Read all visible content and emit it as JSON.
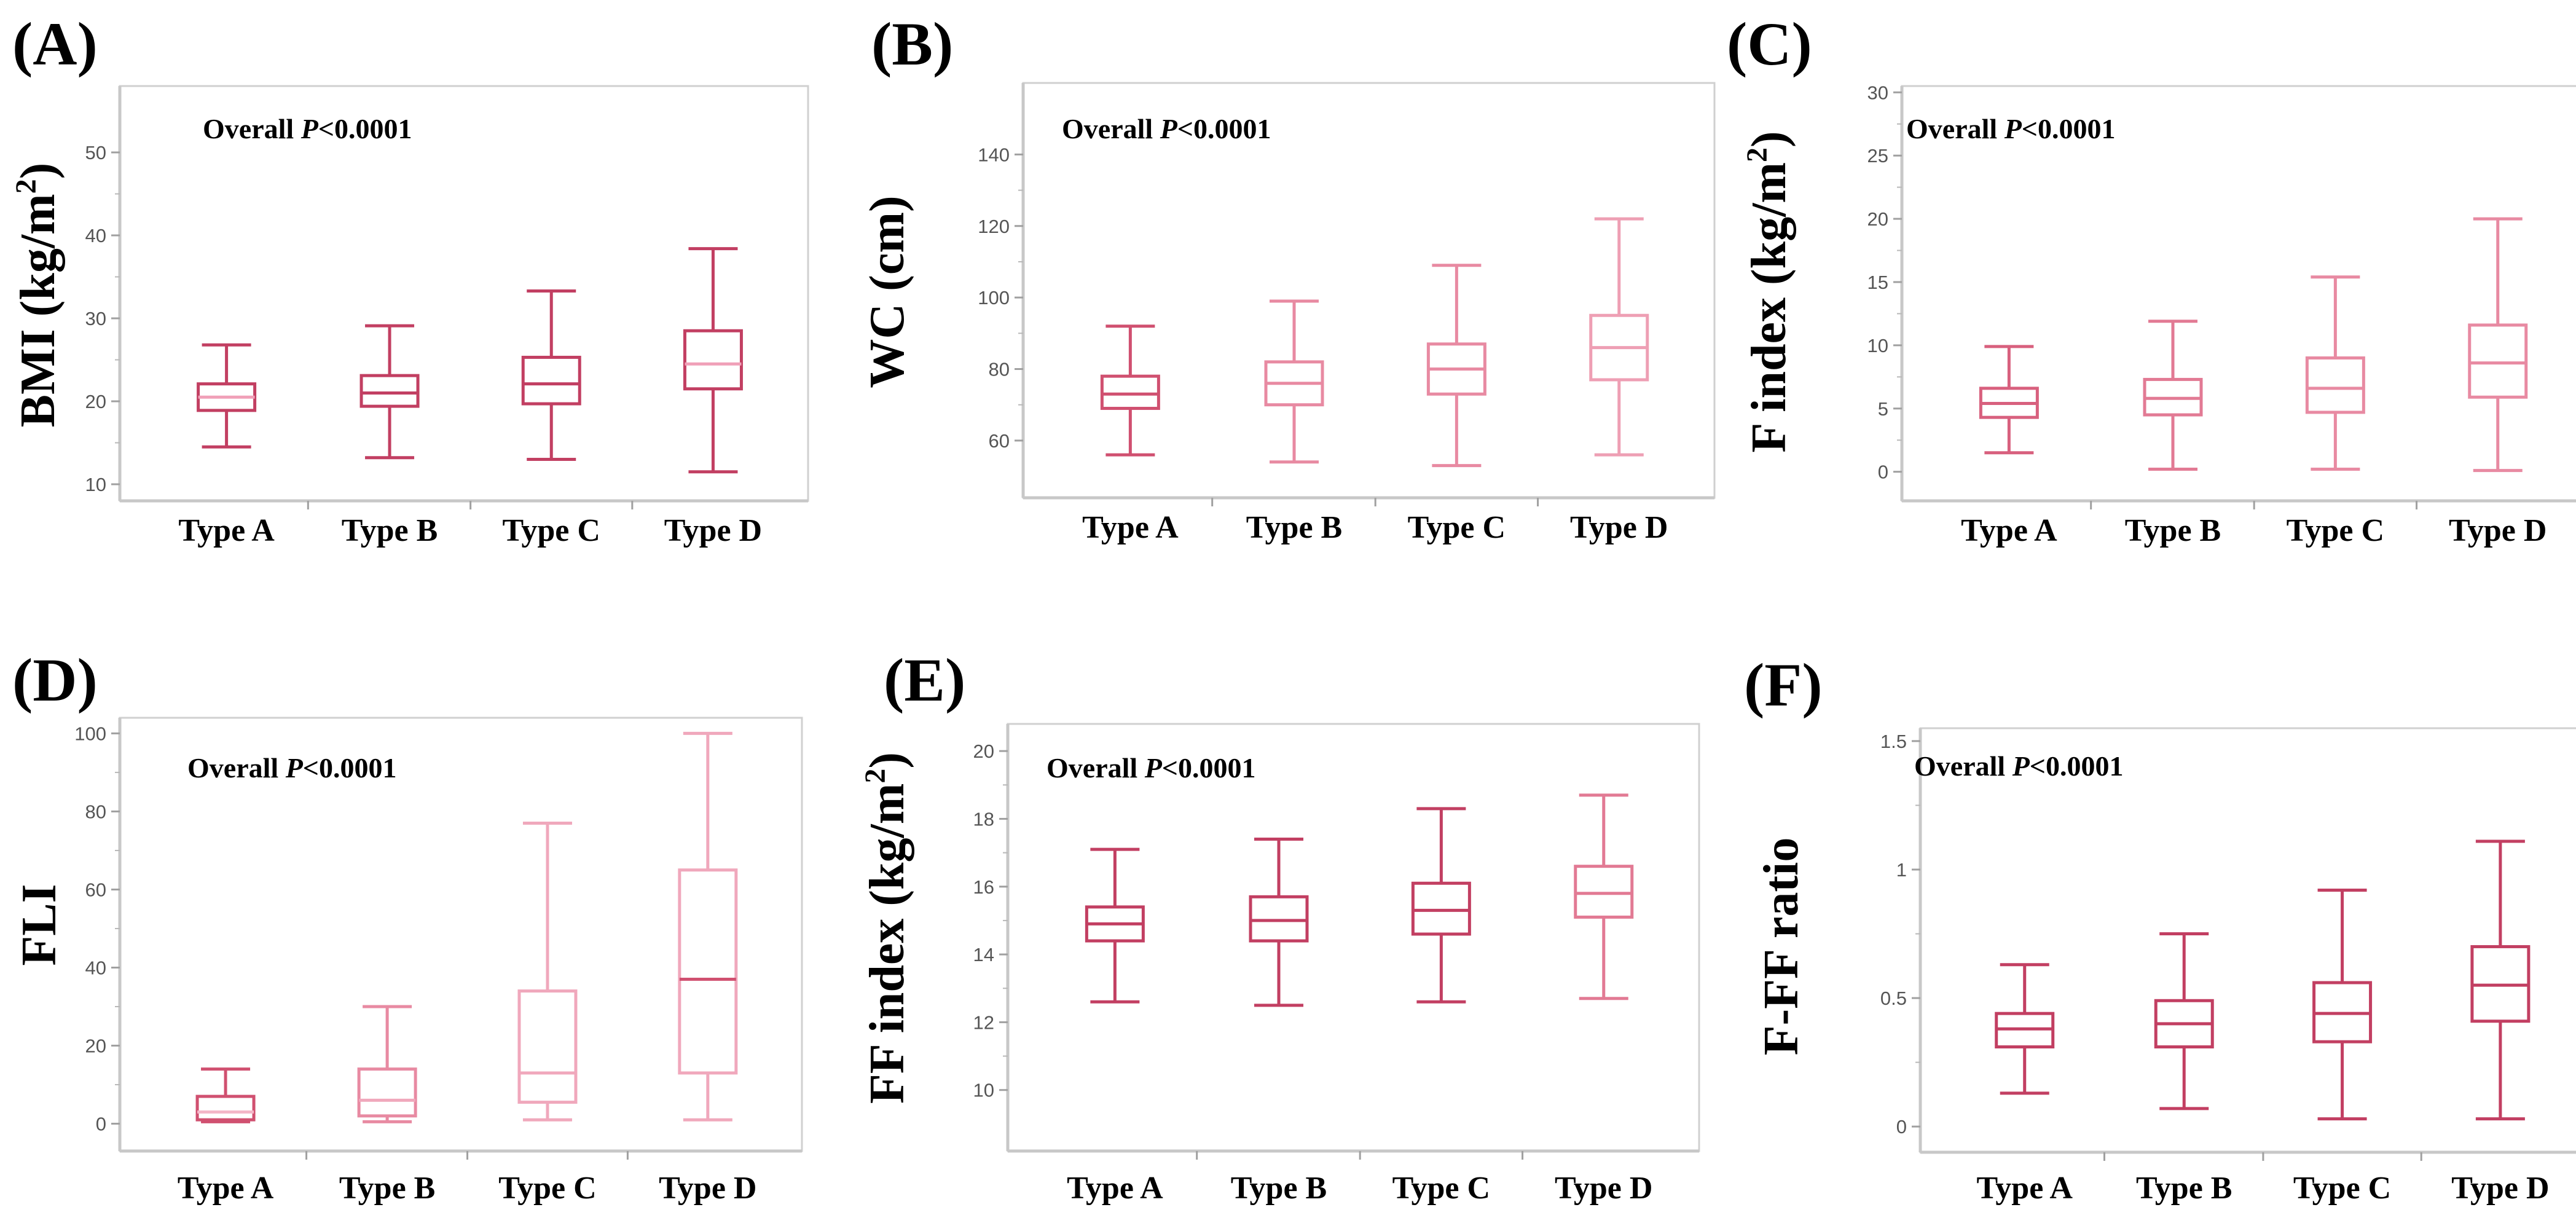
{
  "figure": {
    "background": "#ffffff",
    "axis_color": "#c8c8c8",
    "box_color": "#c0506e"
  },
  "chart_data": [
    {
      "id": "A",
      "panel_label": "(A)",
      "type": "boxplot",
      "ylabel": "BMI (kg/m",
      "ylabel_sup": "2",
      "ylabel_end": ")",
      "annotation": {
        "prefix": "Overall ",
        "italic": "P",
        "suffix": "<0.0001"
      },
      "categories": [
        "Type A",
        "Type B",
        "Type C",
        "Type D"
      ],
      "ylim": [
        8,
        58
      ],
      "yticks": [
        10,
        20,
        30,
        40,
        50
      ],
      "ytick_labels": [
        "10",
        "20",
        "30",
        "40",
        "50"
      ],
      "box_colors": [
        "#c23f62",
        "#c23f62",
        "#c23f62",
        "#c23f62"
      ],
      "median_colors": [
        "#f0a0b8",
        "#c23f62",
        "#c23f62",
        "#f0a0b8"
      ],
      "series": [
        {
          "min": 14.5,
          "q1": 18.9,
          "median": 20.5,
          "q3": 22.1,
          "max": 26.8
        },
        {
          "min": 13.2,
          "q1": 19.4,
          "median": 21.0,
          "q3": 23.1,
          "max": 29.1
        },
        {
          "min": 13.0,
          "q1": 19.7,
          "median": 22.1,
          "q3": 25.3,
          "max": 33.3
        },
        {
          "min": 11.5,
          "q1": 21.5,
          "median": 24.5,
          "q3": 28.5,
          "max": 38.4
        }
      ]
    },
    {
      "id": "B",
      "panel_label": "(B)",
      "type": "boxplot",
      "ylabel": "WC (cm)",
      "ylabel_sup": "",
      "ylabel_end": "",
      "annotation": {
        "prefix": "Overall ",
        "italic": "P",
        "suffix": "<0.0001"
      },
      "categories": [
        "Type A",
        "Type B",
        "Type C",
        "Type D"
      ],
      "ylim": [
        44,
        160
      ],
      "yticks": [
        60,
        80,
        100,
        120,
        140
      ],
      "ytick_labels": [
        "60",
        "80",
        "100",
        "120",
        "140"
      ],
      "box_colors": [
        "#d05070",
        "#e88aa2",
        "#e88aa2",
        "#ee9fb4"
      ],
      "median_colors": [
        "#d05070",
        "#e88aa2",
        "#e88aa2",
        "#ee9fb4"
      ],
      "series": [
        {
          "min": 56,
          "q1": 69,
          "median": 73,
          "q3": 78,
          "max": 92
        },
        {
          "min": 54,
          "q1": 70,
          "median": 76,
          "q3": 82,
          "max": 99
        },
        {
          "min": 53,
          "q1": 73,
          "median": 80,
          "q3": 87,
          "max": 109
        },
        {
          "min": 56,
          "q1": 77,
          "median": 86,
          "q3": 95,
          "max": 122
        }
      ]
    },
    {
      "id": "C",
      "panel_label": "(C)",
      "type": "boxplot",
      "ylabel": "F index (kg/m",
      "ylabel_sup": "2",
      "ylabel_end": ")",
      "annotation": {
        "prefix": "Overall ",
        "italic": "P",
        "suffix": "<0.0001"
      },
      "categories": [
        "Type A",
        "Type B",
        "Type C",
        "Type D"
      ],
      "ylim": [
        -2.3,
        30.5
      ],
      "yticks": [
        0,
        5,
        10,
        15,
        20,
        25,
        30
      ],
      "ytick_labels": [
        "0",
        "5",
        "10",
        "15",
        "20",
        "25",
        "30"
      ],
      "box_colors": [
        "#d8607e",
        "#e27a94",
        "#e88aa2",
        "#e88aa2"
      ],
      "median_colors": [
        "#d8607e",
        "#e27a94",
        "#e88aa2",
        "#e88aa2"
      ],
      "series": [
        {
          "min": 1.5,
          "q1": 4.3,
          "median": 5.4,
          "q3": 6.6,
          "max": 9.9
        },
        {
          "min": 0.2,
          "q1": 4.5,
          "median": 5.8,
          "q3": 7.3,
          "max": 11.9
        },
        {
          "min": 0.2,
          "q1": 4.7,
          "median": 6.6,
          "q3": 9.0,
          "max": 15.4
        },
        {
          "min": 0.1,
          "q1": 5.9,
          "median": 8.6,
          "q3": 11.6,
          "max": 20.0
        }
      ]
    },
    {
      "id": "D",
      "panel_label": "(D)",
      "type": "boxplot",
      "ylabel": "FLI",
      "ylabel_sup": "",
      "ylabel_end": "",
      "annotation": {
        "prefix": "Overall ",
        "italic": "P",
        "suffix": "<0.0001"
      },
      "categories": [
        "Type A",
        "Type B",
        "Type C",
        "Type D"
      ],
      "ylim": [
        -7,
        104
      ],
      "yticks": [
        0,
        20,
        40,
        60,
        80,
        100
      ],
      "ytick_labels": [
        "0",
        "20",
        "40",
        "60",
        "80",
        "100"
      ],
      "box_colors": [
        "#d05070",
        "#e88aa2",
        "#f0a8bc",
        "#f0a8bc"
      ],
      "median_colors": [
        "#f4b6c8",
        "#f0a8bc",
        "#f0a8bc",
        "#d05070"
      ],
      "series": [
        {
          "min": 0.5,
          "q1": 1.0,
          "median": 3.0,
          "q3": 7.0,
          "max": 14
        },
        {
          "min": 0.5,
          "q1": 2.0,
          "median": 6.0,
          "q3": 14.0,
          "max": 30
        },
        {
          "min": 1.0,
          "q1": 5.5,
          "median": 13.0,
          "q3": 34.0,
          "max": 77
        },
        {
          "min": 1.0,
          "q1": 13.0,
          "median": 37.0,
          "q3": 65.0,
          "max": 100
        }
      ]
    },
    {
      "id": "E",
      "panel_label": "(E)",
      "type": "boxplot",
      "ylabel": "FF index (kg/m",
      "ylabel_sup": "2",
      "ylabel_end": ")",
      "annotation": {
        "prefix": "Overall ",
        "italic": "P",
        "suffix": "<0.0001"
      },
      "categories": [
        "Type A",
        "Type B",
        "Type C",
        "Type D"
      ],
      "ylim": [
        8.2,
        20.8
      ],
      "yticks": [
        10,
        12,
        14,
        16,
        18,
        20
      ],
      "ytick_labels": [
        "10",
        "12",
        "14",
        "16",
        "18",
        "20"
      ],
      "box_colors": [
        "#c23f62",
        "#c23f62",
        "#c23f62",
        "#e27a94"
      ],
      "median_colors": [
        "#c23f62",
        "#c23f62",
        "#c23f62",
        "#e27a94"
      ],
      "series": [
        {
          "min": 12.6,
          "q1": 14.4,
          "median": 14.9,
          "q3": 15.4,
          "max": 17.1
        },
        {
          "min": 12.5,
          "q1": 14.4,
          "median": 15.0,
          "q3": 15.7,
          "max": 17.4
        },
        {
          "min": 12.6,
          "q1": 14.6,
          "median": 15.3,
          "q3": 16.1,
          "max": 18.3
        },
        {
          "min": 12.7,
          "q1": 15.1,
          "median": 15.8,
          "q3": 16.6,
          "max": 18.7
        }
      ]
    },
    {
      "id": "F",
      "panel_label": "(F)",
      "type": "boxplot",
      "ylabel": "F-FF ratio",
      "ylabel_sup": "",
      "ylabel_end": "",
      "annotation": {
        "prefix": "Overall ",
        "italic": "P",
        "suffix": "<0.0001"
      },
      "categories": [
        "Type A",
        "Type B",
        "Type C",
        "Type D"
      ],
      "ylim": [
        -0.1,
        1.55
      ],
      "yticks": [
        0,
        0.5,
        1,
        1.5
      ],
      "ytick_labels": [
        "0",
        "0.5",
        "1",
        "1.5"
      ],
      "box_colors": [
        "#c23f62",
        "#c23f62",
        "#c23f62",
        "#c23f62"
      ],
      "median_colors": [
        "#c23f62",
        "#c23f62",
        "#c23f62",
        "#c23f62"
      ],
      "series": [
        {
          "min": 0.13,
          "q1": 0.31,
          "median": 0.38,
          "q3": 0.44,
          "max": 0.63
        },
        {
          "min": 0.07,
          "q1": 0.31,
          "median": 0.4,
          "q3": 0.49,
          "max": 0.75
        },
        {
          "min": 0.03,
          "q1": 0.33,
          "median": 0.44,
          "q3": 0.56,
          "max": 0.92
        },
        {
          "min": 0.03,
          "q1": 0.41,
          "median": 0.55,
          "q3": 0.7,
          "max": 1.11
        }
      ]
    }
  ]
}
